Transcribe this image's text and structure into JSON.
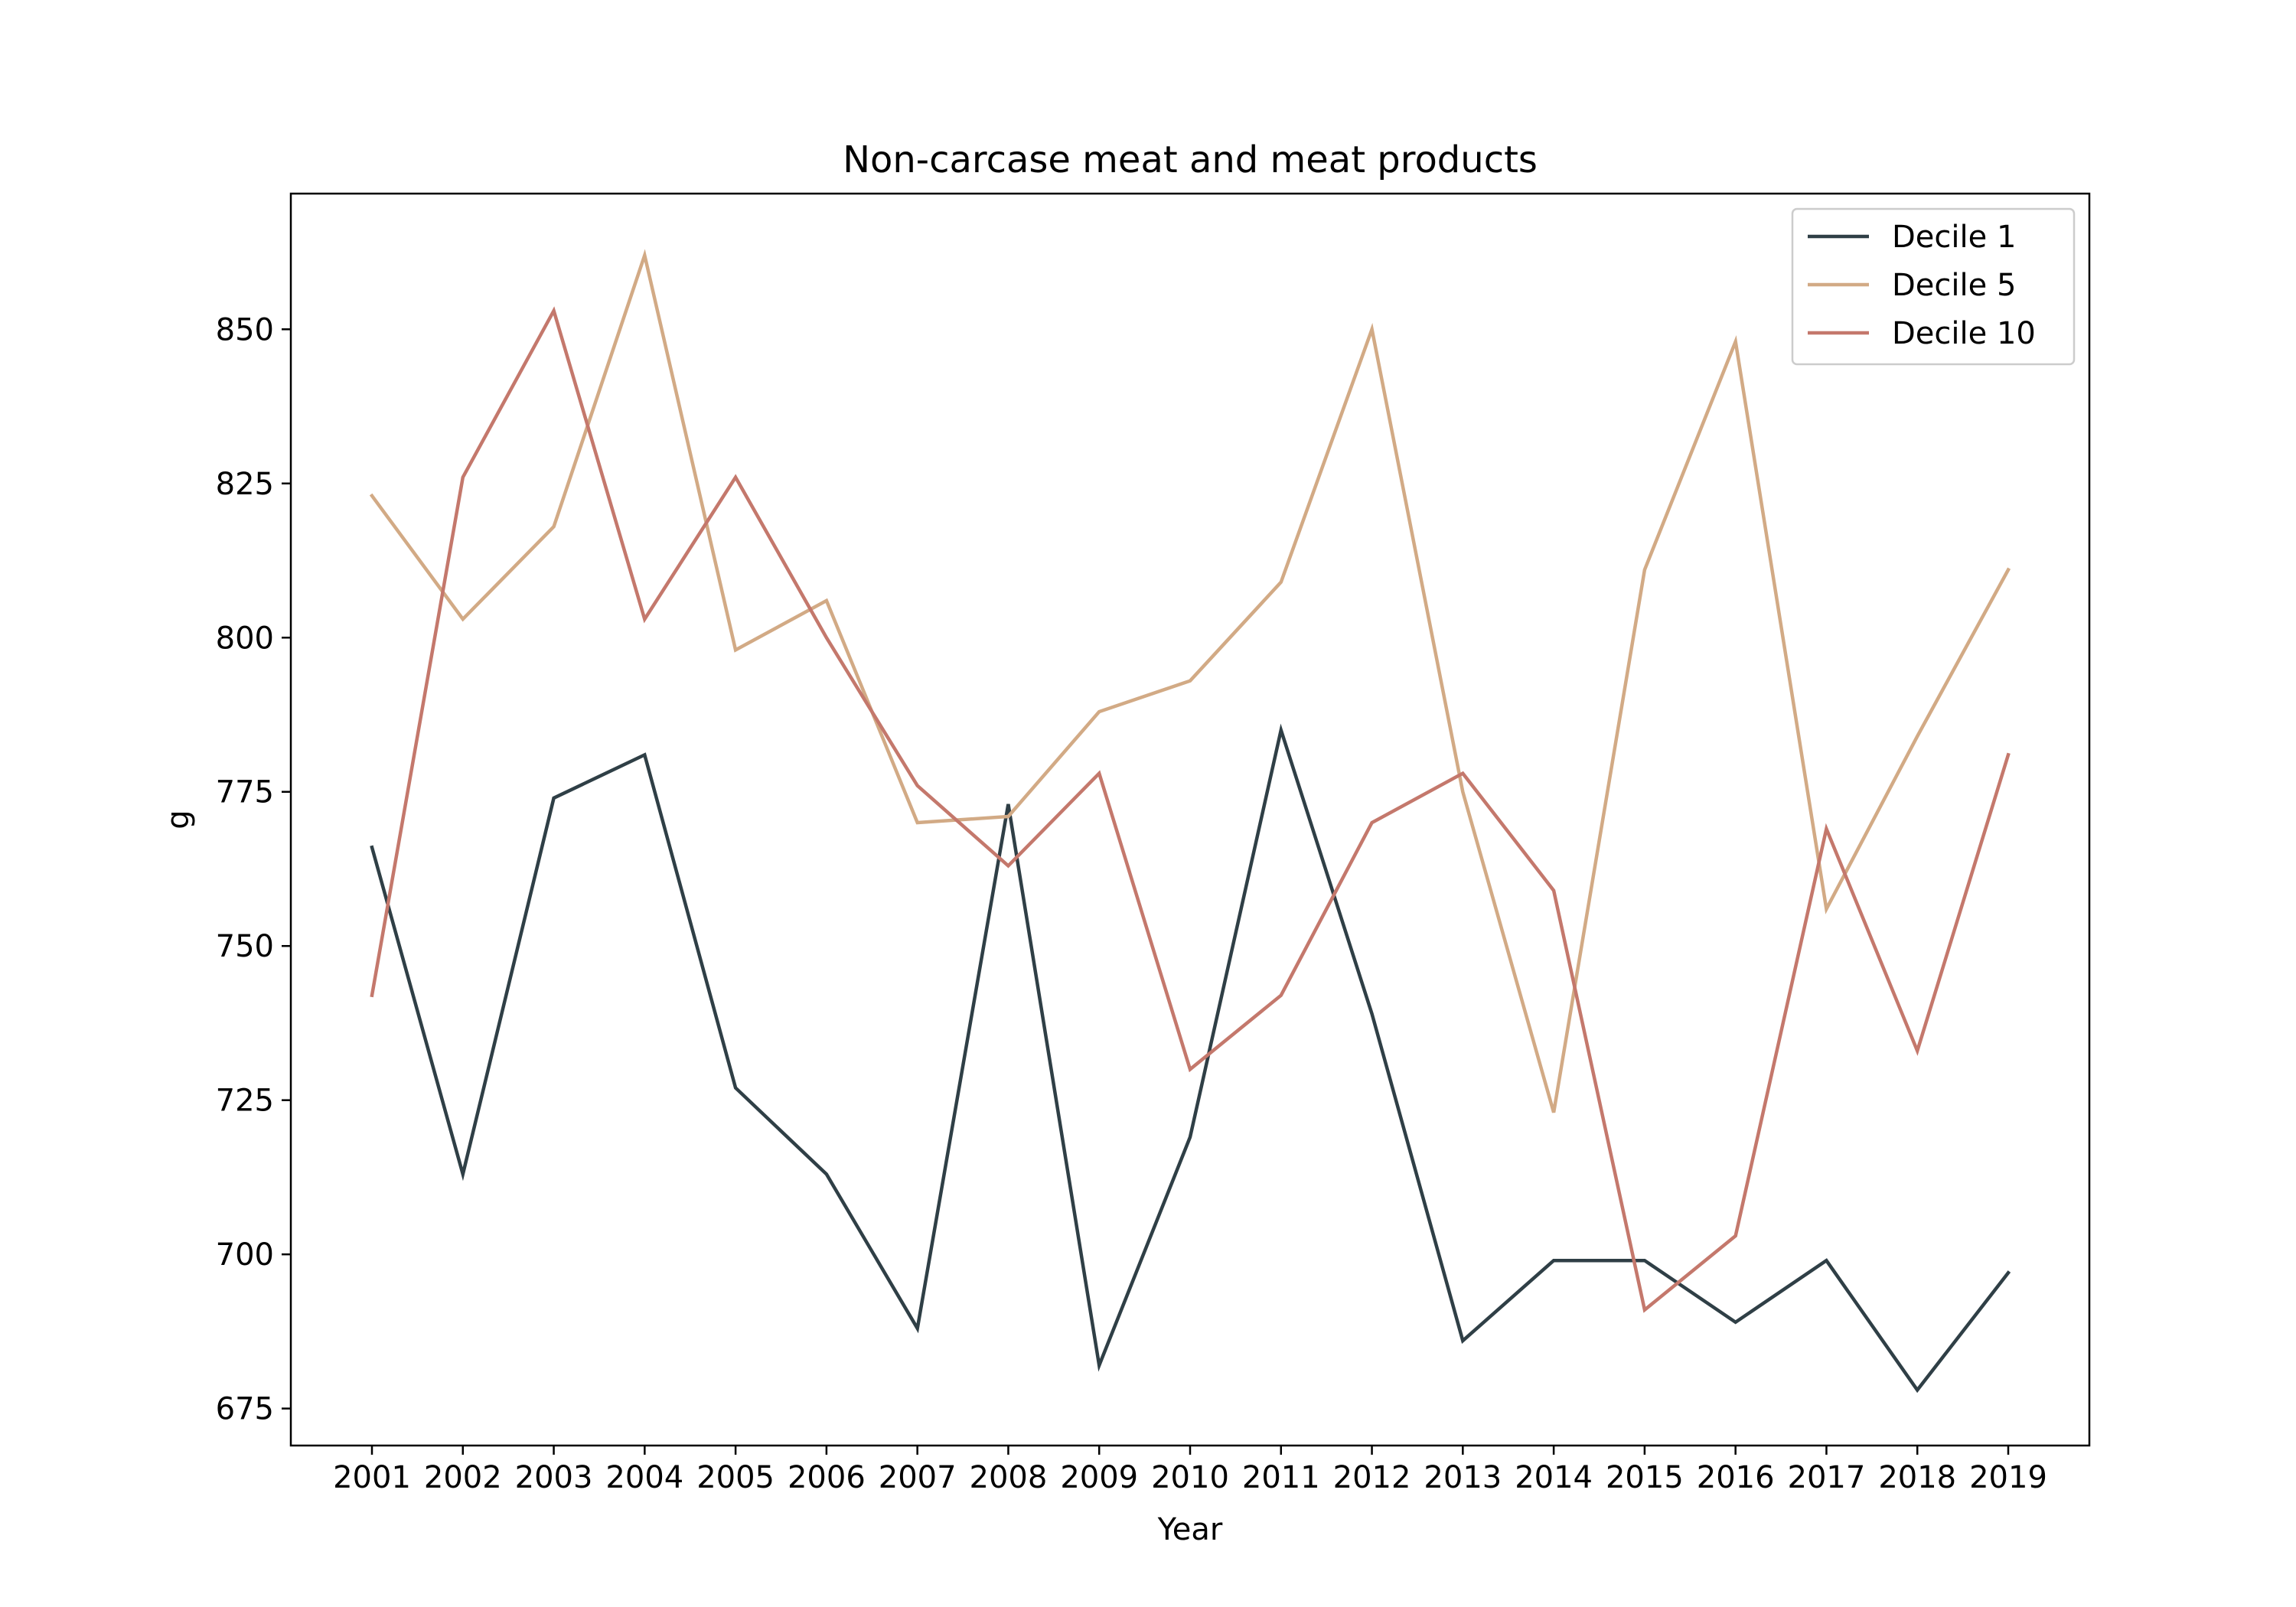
{
  "chart_data": {
    "type": "line",
    "title": "Non-carcase meat and meat products",
    "xlabel": "Year",
    "ylabel": "g",
    "categories": [
      "2001",
      "2002",
      "2003",
      "2004",
      "2005",
      "2006",
      "2007",
      "2008",
      "2009",
      "2010",
      "2011",
      "2012",
      "2013",
      "2014",
      "2015",
      "2016",
      "2017",
      "2018",
      "2019"
    ],
    "ylim": [
      669,
      872
    ],
    "yticks": [
      675,
      700,
      725,
      750,
      775,
      800,
      825,
      850
    ],
    "grid": false,
    "legend_position": "top-right",
    "series": [
      {
        "name": "Decile 1",
        "color": "#2f3f46",
        "values": [
          766,
          713,
          774,
          781,
          727,
          713,
          688,
          773,
          682,
          719,
          785,
          739,
          686,
          699,
          699,
          689,
          699,
          678,
          697
        ]
      },
      {
        "name": "Decile 5",
        "color": "#d2aa85",
        "values": [
          823,
          803,
          818,
          862,
          798,
          806,
          770,
          771,
          788,
          793,
          809,
          850,
          775,
          723,
          811,
          848,
          756,
          784,
          811
        ]
      },
      {
        "name": "Decile 10",
        "color": "#c4786c",
        "values": [
          742,
          826,
          853,
          803,
          826,
          800,
          776,
          763,
          778,
          730,
          742,
          770,
          778,
          759,
          691,
          703,
          769,
          733,
          781
        ]
      }
    ]
  }
}
